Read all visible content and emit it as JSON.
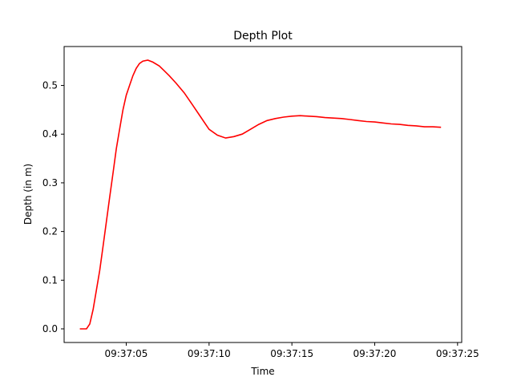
{
  "chart_data": {
    "type": "line",
    "title": "Depth Plot",
    "xlabel": "Time",
    "ylabel": "Depth (in m)",
    "x_ticks": [
      "09:37:05",
      "09:37:10",
      "09:37:15",
      "09:37:20",
      "09:37:25"
    ],
    "y_ticks": [
      "0.0",
      "0.1",
      "0.2",
      "0.3",
      "0.4",
      "0.5"
    ],
    "xlim": [
      "09:37:01.25",
      "09:37:25.25"
    ],
    "ylim": [
      -0.028,
      0.58
    ],
    "grid": false,
    "series": [
      {
        "color": "#ff0000",
        "x": [
          "09:37:02.2",
          "09:37:02.6",
          "09:37:02.8",
          "09:37:03.0",
          "09:37:03.2",
          "09:37:03.4",
          "09:37:03.6",
          "09:37:03.8",
          "09:37:04.0",
          "09:37:04.2",
          "09:37:04.4",
          "09:37:04.6",
          "09:37:04.8",
          "09:37:05.0",
          "09:37:05.2",
          "09:37:05.4",
          "09:37:05.6",
          "09:37:05.8",
          "09:37:06.0",
          "09:37:06.3",
          "09:37:06.6",
          "09:37:07.0",
          "09:37:07.3",
          "09:37:07.6",
          "09:37:08.0",
          "09:37:08.5",
          "09:37:09.0",
          "09:37:09.5",
          "09:37:10.0",
          "09:37:10.5",
          "09:37:11.0",
          "09:37:11.5",
          "09:37:12.0",
          "09:37:12.5",
          "09:37:13.0",
          "09:37:13.5",
          "09:37:14.0",
          "09:37:14.5",
          "09:37:15.0",
          "09:37:15.5",
          "09:37:16.0",
          "09:37:16.5",
          "09:37:17.0",
          "09:37:17.5",
          "09:37:18.0",
          "09:37:18.5",
          "09:37:19.0",
          "09:37:19.5",
          "09:37:20.0",
          "09:37:20.5",
          "09:37:21.0",
          "09:37:21.5",
          "09:37:22.0",
          "09:37:22.5",
          "09:37:23.0",
          "09:37:23.5",
          "09:37:24.0"
        ],
        "y": [
          0.0,
          0.0,
          0.01,
          0.04,
          0.08,
          0.12,
          0.17,
          0.22,
          0.27,
          0.32,
          0.37,
          0.41,
          0.45,
          0.48,
          0.5,
          0.52,
          0.535,
          0.545,
          0.55,
          0.552,
          0.548,
          0.54,
          0.53,
          0.52,
          0.505,
          0.485,
          0.46,
          0.435,
          0.41,
          0.398,
          0.392,
          0.395,
          0.4,
          0.41,
          0.42,
          0.428,
          0.432,
          0.435,
          0.437,
          0.438,
          0.437,
          0.436,
          0.434,
          0.433,
          0.432,
          0.43,
          0.428,
          0.426,
          0.425,
          0.423,
          0.421,
          0.42,
          0.418,
          0.417,
          0.415,
          0.415,
          0.414
        ]
      }
    ]
  }
}
